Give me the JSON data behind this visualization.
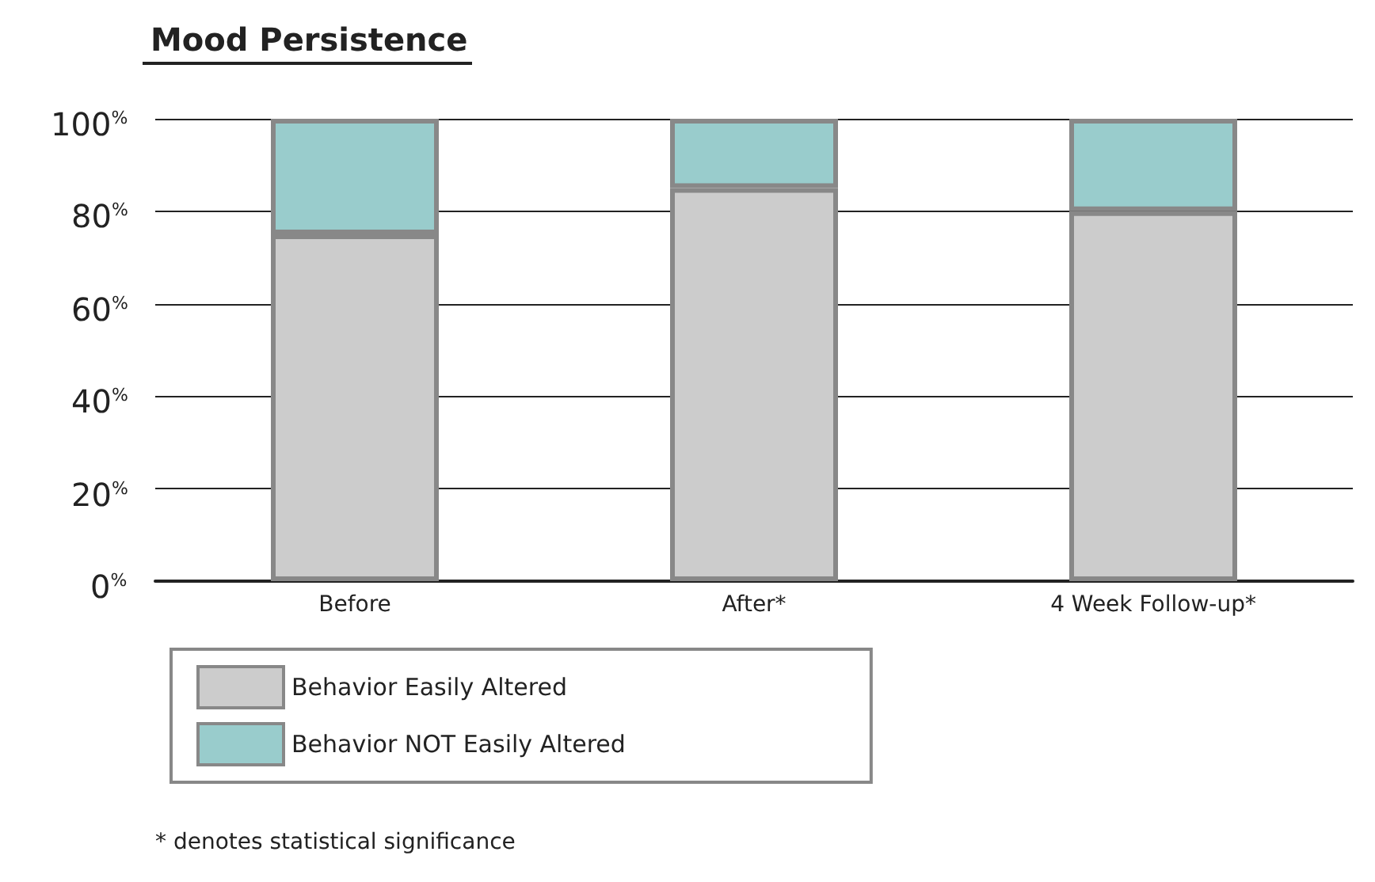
{
  "chart_data": {
    "type": "bar",
    "title": "Mood Persistence",
    "categories": [
      "Before",
      "After*",
      "4 Week Follow-up*"
    ],
    "stacked": true,
    "series": [
      {
        "name": "Behavior Easily Altered",
        "color": "#cccccc",
        "values": [
          75,
          85,
          80
        ]
      },
      {
        "name": "Behavior NOT Easily Altered",
        "color": "#99cccc",
        "values": [
          25,
          15,
          20
        ]
      }
    ],
    "ylim": [
      0,
      100
    ],
    "yticks": [
      {
        "value": 0,
        "label": "0$^{%}$"
      },
      {
        "value": 20,
        "label": "20$^{%}$"
      },
      {
        "value": 40,
        "label": "40$^{%}$"
      },
      {
        "value": 60,
        "label": "60$^{%}$"
      },
      {
        "value": 80,
        "label": "80$^{%}$"
      },
      {
        "value": 100,
        "label": "100$^{%}$"
      }
    ],
    "grid": "y",
    "legend": "bottom left",
    "annotations": [
      "* denotes statistical significance"
    ]
  }
}
